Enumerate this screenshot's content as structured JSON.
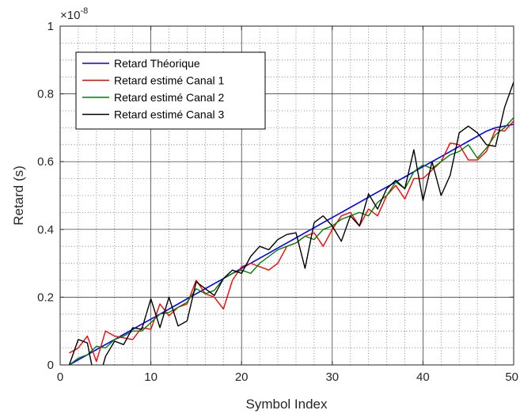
{
  "chart_data": {
    "type": "line",
    "xlabel": "Symbol Index",
    "ylabel": "Retard (s)",
    "exponent_label": "×10",
    "exponent_power": "-8",
    "xlim": [
      0,
      50
    ],
    "ylim": [
      0,
      1
    ],
    "x_ticks": [
      0,
      10,
      20,
      30,
      40,
      50
    ],
    "y_ticks": [
      0,
      0.2,
      0.4,
      0.6,
      0.8,
      1
    ],
    "x_tick_labels": [
      "0",
      "10",
      "20",
      "30",
      "40",
      "50"
    ],
    "y_tick_labels": [
      "0",
      "0.2",
      "0.4",
      "0.6",
      "0.8",
      "1"
    ],
    "grid": "on, major and minor",
    "legend_position": "top-left",
    "x": [
      1,
      2,
      3,
      4,
      5,
      6,
      7,
      8,
      9,
      10,
      11,
      12,
      13,
      14,
      15,
      16,
      17,
      18,
      19,
      20,
      21,
      22,
      23,
      24,
      25,
      26,
      27,
      28,
      29,
      30,
      31,
      32,
      33,
      34,
      35,
      36,
      37,
      38,
      39,
      40,
      41,
      42,
      43,
      44,
      45,
      46,
      47,
      48,
      49,
      50
    ],
    "series": [
      {
        "name": "Retard Théorique",
        "color": "#0000ff",
        "values": [
          0.0,
          0.015,
          0.03,
          0.045,
          0.06,
          0.075,
          0.09,
          0.105,
          0.12,
          0.135,
          0.15,
          0.165,
          0.18,
          0.195,
          0.21,
          0.225,
          0.24,
          0.255,
          0.27,
          0.285,
          0.3,
          0.315,
          0.33,
          0.345,
          0.36,
          0.375,
          0.39,
          0.405,
          0.42,
          0.435,
          0.45,
          0.465,
          0.48,
          0.495,
          0.51,
          0.525,
          0.54,
          0.555,
          0.57,
          0.585,
          0.6,
          0.615,
          0.63,
          0.645,
          0.66,
          0.675,
          0.69,
          0.7,
          0.705,
          0.71
        ]
      },
      {
        "name": "Retard estimé Canal 1",
        "color": "#ff0000",
        "values": [
          0.035,
          0.05,
          0.085,
          0.01,
          0.1,
          0.085,
          0.08,
          0.075,
          0.11,
          0.105,
          0.18,
          0.145,
          0.17,
          0.18,
          0.25,
          0.21,
          0.2,
          0.165,
          0.25,
          0.29,
          0.3,
          0.29,
          0.28,
          0.3,
          0.35,
          0.36,
          0.38,
          0.39,
          0.35,
          0.4,
          0.44,
          0.45,
          0.41,
          0.46,
          0.44,
          0.5,
          0.53,
          0.49,
          0.55,
          0.55,
          0.575,
          0.6,
          0.655,
          0.65,
          0.605,
          0.605,
          0.63,
          0.695,
          0.69,
          0.72
        ]
      },
      {
        "name": "Retard estimé Canal 2",
        "color": "#007f00",
        "values": [
          0.0,
          0.02,
          0.03,
          0.055,
          0.05,
          0.075,
          0.085,
          0.1,
          0.1,
          0.125,
          0.15,
          0.155,
          0.17,
          0.185,
          0.225,
          0.21,
          0.22,
          0.255,
          0.27,
          0.28,
          0.27,
          0.3,
          0.32,
          0.34,
          0.35,
          0.36,
          0.38,
          0.37,
          0.4,
          0.41,
          0.43,
          0.44,
          0.45,
          0.44,
          0.48,
          0.5,
          0.54,
          0.52,
          0.57,
          0.59,
          0.58,
          0.6,
          0.62,
          0.63,
          0.65,
          0.61,
          0.64,
          0.68,
          0.7,
          0.73
        ]
      },
      {
        "name": "Retard estimé Canal 3",
        "color": "#000000",
        "values": [
          0.0,
          0.075,
          0.065,
          -0.07,
          0.025,
          0.07,
          0.06,
          0.11,
          0.105,
          0.195,
          0.11,
          0.2,
          0.115,
          0.13,
          0.245,
          0.225,
          0.205,
          0.255,
          0.28,
          0.27,
          0.32,
          0.35,
          0.34,
          0.37,
          0.385,
          0.39,
          0.285,
          0.42,
          0.44,
          0.41,
          0.365,
          0.44,
          0.41,
          0.505,
          0.46,
          0.52,
          0.545,
          0.52,
          0.635,
          0.485,
          0.6,
          0.5,
          0.56,
          0.685,
          0.705,
          0.685,
          0.65,
          0.645,
          0.76,
          0.835
        ]
      }
    ]
  },
  "colors": {
    "axes_border": "#262626",
    "major_grid": "#262626",
    "minor_grid": "#707070",
    "legend_border": "#000000"
  }
}
